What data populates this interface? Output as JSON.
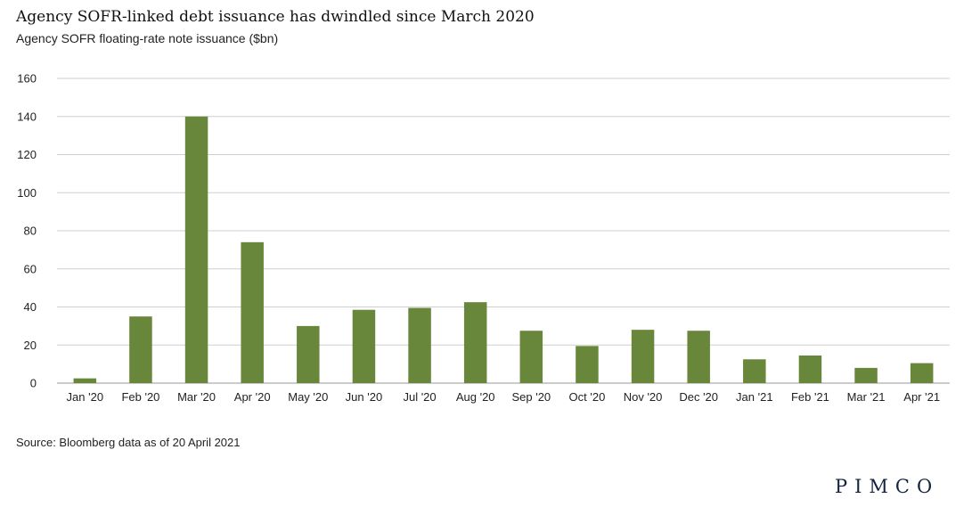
{
  "chart_data": {
    "type": "bar",
    "title": "Agency SOFR-linked debt issuance has dwindled since March 2020",
    "subtitle": "Agency SOFR floating-rate note issuance ($bn)",
    "xlabel": "",
    "ylabel": "",
    "categories": [
      "Jan '20",
      "Feb '20",
      "Mar '20",
      "Apr '20",
      "May '20",
      "Jun '20",
      "Jul '20",
      "Aug '20",
      "Sep '20",
      "Oct '20",
      "Nov '20",
      "Dec '20",
      "Jan '21",
      "Feb '21",
      "Mar '21",
      "Apr '21"
    ],
    "values": [
      2.5,
      35,
      140,
      74,
      30,
      38.5,
      39.5,
      42.5,
      27.5,
      19.5,
      28,
      27.5,
      12.5,
      14.5,
      8,
      10.5
    ],
    "ylim": [
      0,
      160
    ],
    "yticks": [
      0,
      20,
      40,
      60,
      80,
      100,
      120,
      140,
      160
    ],
    "grid": true,
    "bar_color": "#68873a",
    "grid_color": "#cfcfcf",
    "axis_color": "#999999"
  },
  "source": "Source: Bloomberg data as of 20 April 2021",
  "logo": "PIMCO"
}
